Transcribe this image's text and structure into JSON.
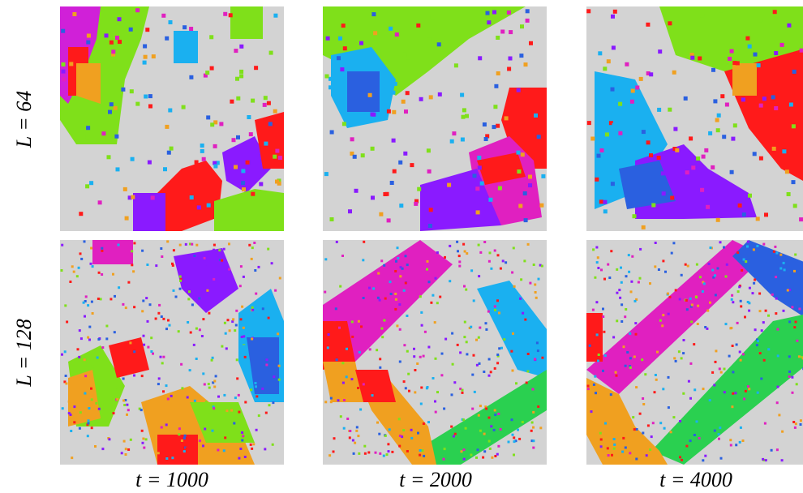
{
  "rows": [
    {
      "label": "L = 64"
    },
    {
      "label": "L = 128"
    }
  ],
  "columns": [
    {
      "label": "t = 1000"
    },
    {
      "label": "t = 2000"
    },
    {
      "label": "t = 4000"
    }
  ]
}
